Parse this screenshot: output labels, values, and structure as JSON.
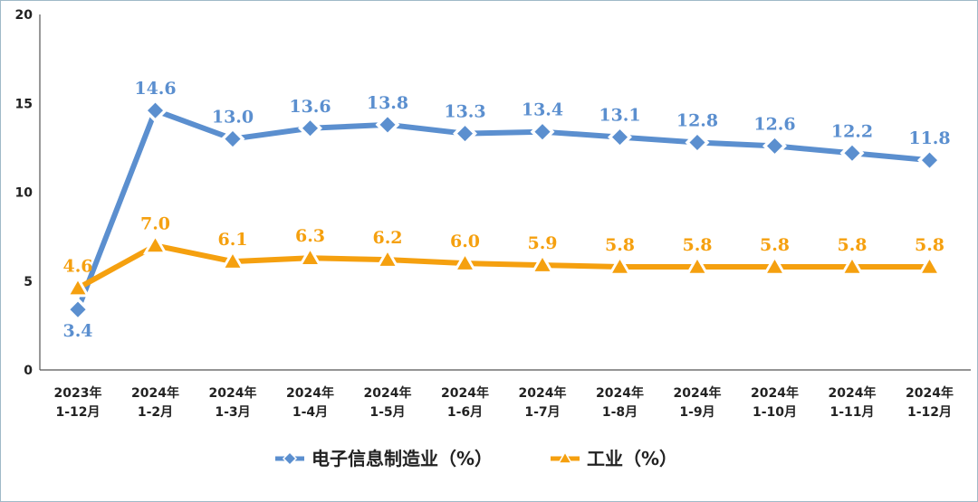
{
  "chart_data": {
    "type": "line",
    "categories": [
      [
        "2023年",
        "1-12月"
      ],
      [
        "2024年",
        "1-2月"
      ],
      [
        "2024年",
        "1-3月"
      ],
      [
        "2024年",
        "1-4月"
      ],
      [
        "2024年",
        "1-5月"
      ],
      [
        "2024年",
        "1-6月"
      ],
      [
        "2024年",
        "1-7月"
      ],
      [
        "2024年",
        "1-8月"
      ],
      [
        "2024年",
        "1-9月"
      ],
      [
        "2024年",
        "1-10月"
      ],
      [
        "2024年",
        "1-11月"
      ],
      [
        "2024年",
        "1-12月"
      ]
    ],
    "series": [
      {
        "name": "电子信息制造业（%）",
        "values": [
          3.4,
          14.6,
          13.0,
          13.6,
          13.8,
          13.3,
          13.4,
          13.1,
          12.8,
          12.6,
          12.2,
          11.8
        ],
        "labels": [
          "3.4",
          "14.6",
          "13.0",
          "13.6",
          "13.8",
          "13.3",
          "13.4",
          "13.1",
          "12.8",
          "12.6",
          "12.2",
          "11.8"
        ],
        "color": "#5b8fcf",
        "marker": "diamond"
      },
      {
        "name": "工业（%）",
        "values": [
          4.6,
          7.0,
          6.1,
          6.3,
          6.2,
          6.0,
          5.9,
          5.8,
          5.8,
          5.8,
          5.8,
          5.8
        ],
        "labels": [
          "4.6",
          "7.0",
          "6.1",
          "6.3",
          "6.2",
          "6.0",
          "5.9",
          "5.8",
          "5.8",
          "5.8",
          "5.8",
          "5.8"
        ],
        "color": "#f5a00f",
        "marker": "triangle"
      }
    ],
    "yticks": [
      "0",
      "5",
      "10",
      "15",
      "20"
    ],
    "ylim": [
      0,
      20
    ],
    "grid": false,
    "legend": "bottom"
  }
}
